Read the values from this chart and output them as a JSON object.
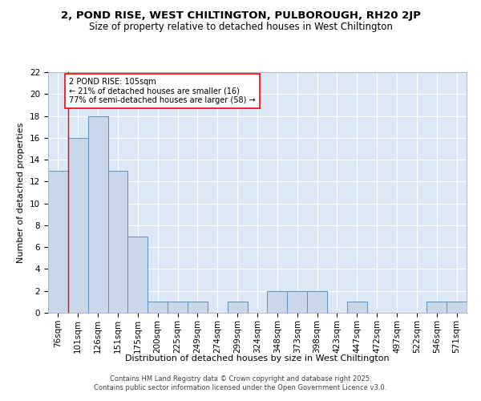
{
  "title1": "2, POND RISE, WEST CHILTINGTON, PULBOROUGH, RH20 2JP",
  "title2": "Size of property relative to detached houses in West Chiltington",
  "xlabel": "Distribution of detached houses by size in West Chiltington",
  "ylabel": "Number of detached properties",
  "bar_color": "#c8d8ea",
  "bar_edge_color": "#6090b8",
  "background_color": "#dce8f5",
  "grid_color": "#ffffff",
  "categories": [
    "76sqm",
    "101sqm",
    "126sqm",
    "151sqm",
    "175sqm",
    "200sqm",
    "225sqm",
    "249sqm",
    "274sqm",
    "299sqm",
    "324sqm",
    "348sqm",
    "373sqm",
    "398sqm",
    "423sqm",
    "447sqm",
    "472sqm",
    "497sqm",
    "522sqm",
    "546sqm",
    "571sqm"
  ],
  "values": [
    13,
    16,
    18,
    13,
    7,
    1,
    1,
    1,
    0,
    1,
    0,
    2,
    2,
    2,
    0,
    1,
    0,
    0,
    0,
    1,
    1
  ],
  "ylim": [
    0,
    22
  ],
  "yticks": [
    0,
    2,
    4,
    6,
    8,
    10,
    12,
    14,
    16,
    18,
    20,
    22
  ],
  "annotation_text": "2 POND RISE: 105sqm\n← 21% of detached houses are smaller (16)\n77% of semi-detached houses are larger (58) →",
  "copyright_text": "Contains HM Land Registry data © Crown copyright and database right 2025.\nContains public sector information licensed under the Open Government Licence v3.0.",
  "title1_fontsize": 9.5,
  "title2_fontsize": 8.5,
  "xlabel_fontsize": 8,
  "ylabel_fontsize": 8,
  "tick_fontsize": 7.5,
  "annot_fontsize": 7,
  "copyright_fontsize": 6
}
